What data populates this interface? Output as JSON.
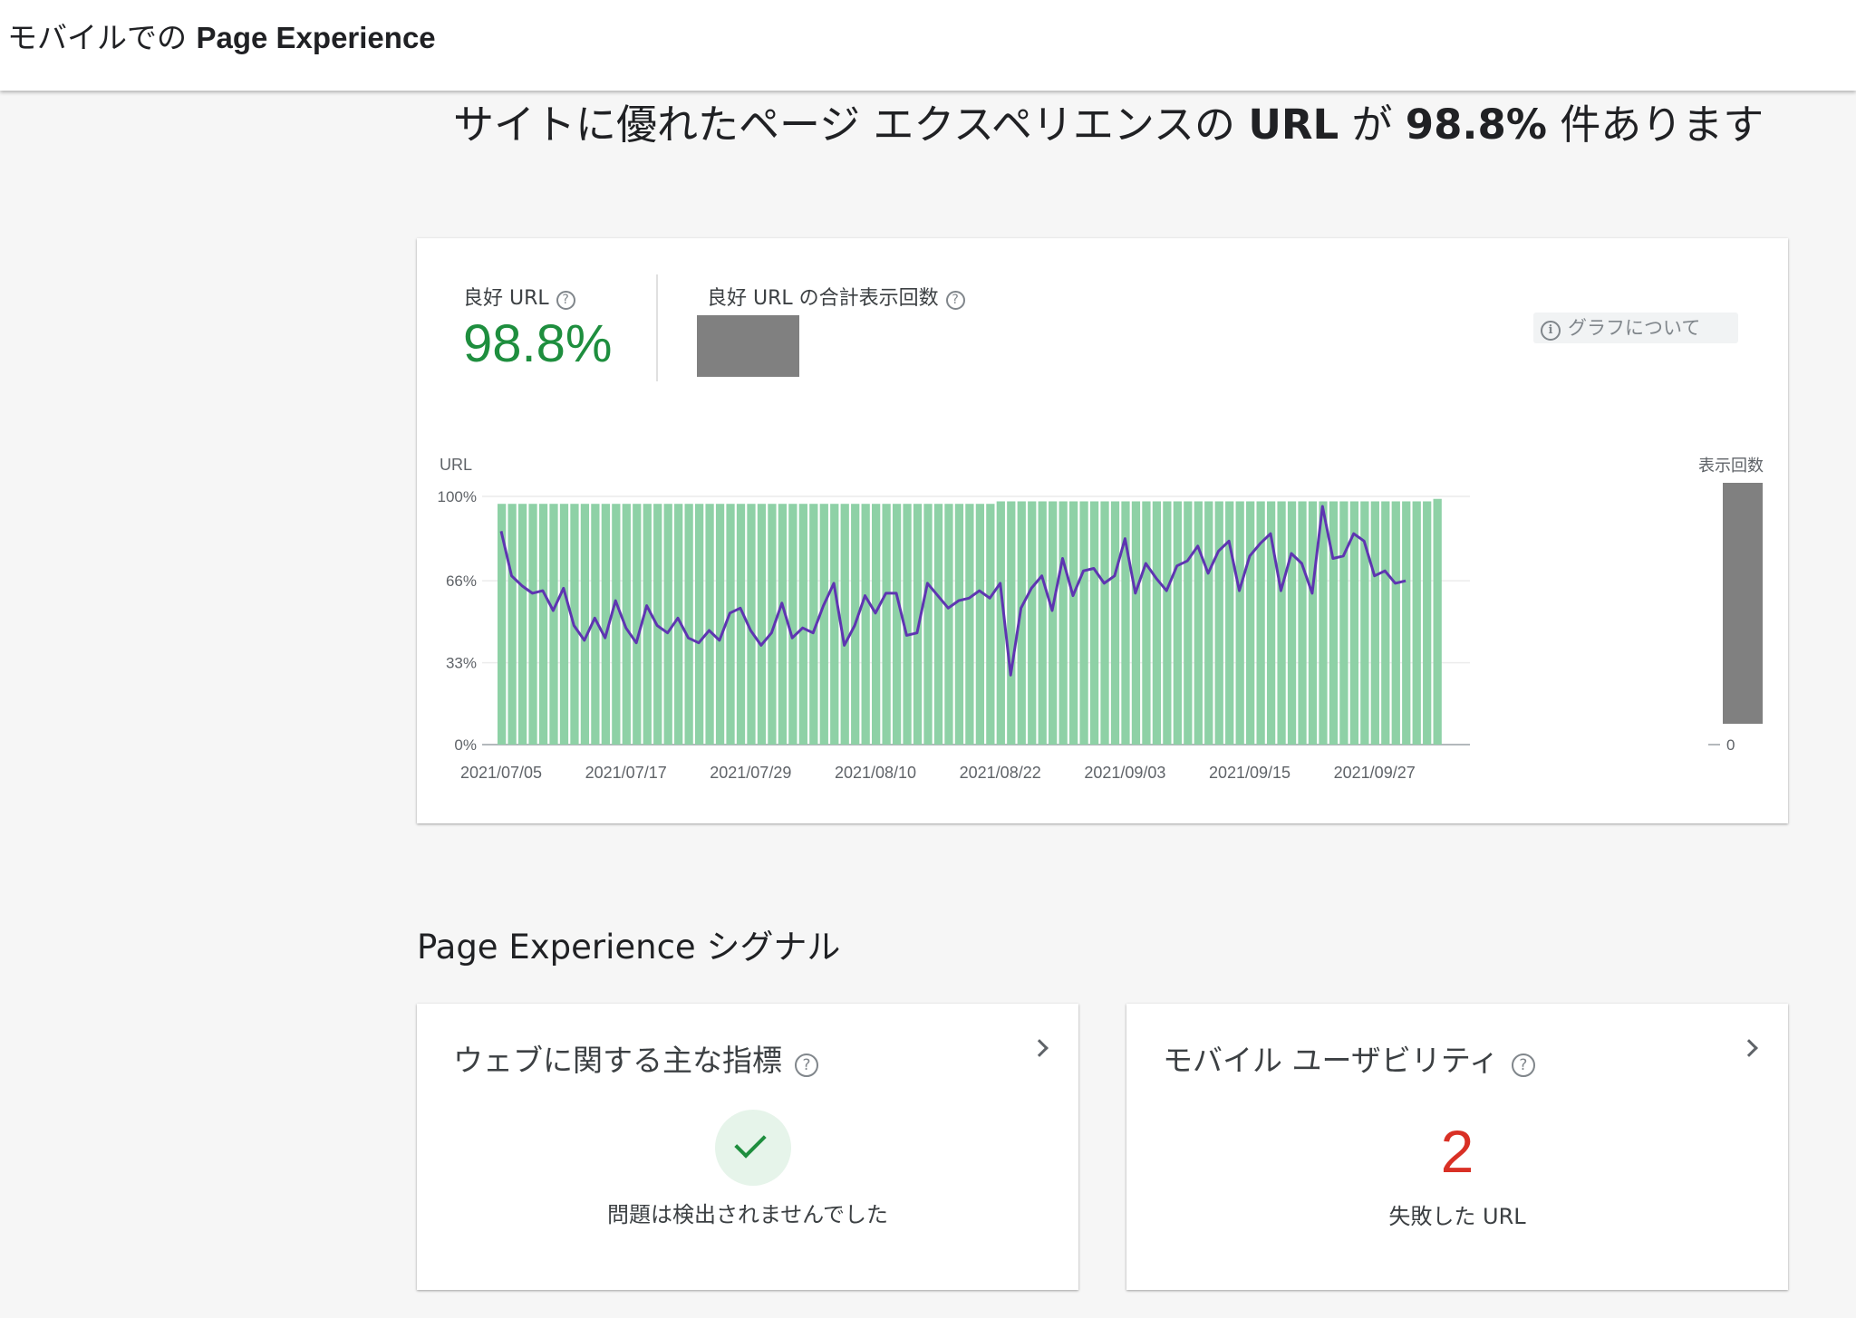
{
  "header": {
    "title_prefix": "モバイルでの ",
    "title_bold": "Page Experience"
  },
  "headline": {
    "prefix": "サイトに優れたページ エクスペリエンスの ",
    "bold1": "URL",
    "middle": " が ",
    "bold2": "98.8%",
    "suffix": " 件あります"
  },
  "summary": {
    "good_url_label": "良好 URL",
    "good_url_value": "98.8%",
    "impressions_label": "良好 URL の合計表示回数",
    "about_graph_label": "グラフについて",
    "help_glyph": "?",
    "info_glyph": "i"
  },
  "chart_data": {
    "type": "bar",
    "y_label_left": "URL",
    "y_label_right": "表示回数",
    "y_ticks_left": [
      "0%",
      "33%",
      "66%",
      "100%"
    ],
    "y_ticks_left_values": [
      0,
      33,
      66,
      100
    ],
    "y_tick_right": "0",
    "x_tick_labels": [
      "2021/07/05",
      "2021/07/17",
      "2021/07/29",
      "2021/08/10",
      "2021/08/22",
      "2021/09/03",
      "2021/09/15",
      "2021/09/27"
    ],
    "ylim": [
      0,
      100
    ],
    "bar_color": "#8ed1a6",
    "line_color": "#5e35b1",
    "first_date": "2021/07/05",
    "bar_values_percent": [
      97,
      97,
      97,
      97,
      97,
      97,
      97,
      97,
      97,
      97,
      97,
      97,
      97,
      97,
      97,
      97,
      97,
      97,
      97,
      97,
      97,
      97,
      97,
      97,
      97,
      97,
      97,
      97,
      97,
      97,
      97,
      97,
      97,
      97,
      97,
      97,
      97,
      97,
      97,
      97,
      97,
      97,
      97,
      97,
      97,
      97,
      97,
      97,
      98,
      98,
      98,
      98,
      98,
      98,
      98,
      98,
      98,
      98,
      98,
      98,
      98,
      98,
      98,
      98,
      98,
      98,
      98,
      98,
      98,
      98,
      98,
      98,
      98,
      98,
      98,
      98,
      98,
      98,
      98,
      98,
      98,
      98,
      98,
      98,
      98,
      98,
      98,
      98,
      98,
      98,
      99
    ],
    "line_points": [
      [
        0,
        0.86
      ],
      [
        1,
        0.68
      ],
      [
        2,
        0.64
      ],
      [
        3,
        0.61
      ],
      [
        4,
        0.62
      ],
      [
        5,
        0.54
      ],
      [
        6,
        0.63
      ],
      [
        7,
        0.48
      ],
      [
        8,
        0.42
      ],
      [
        9,
        0.51
      ],
      [
        10,
        0.43
      ],
      [
        11,
        0.58
      ],
      [
        12,
        0.47
      ],
      [
        13,
        0.41
      ],
      [
        14,
        0.56
      ],
      [
        15,
        0.48
      ],
      [
        16,
        0.45
      ],
      [
        17,
        0.51
      ],
      [
        18,
        0.43
      ],
      [
        19,
        0.41
      ],
      [
        20,
        0.46
      ],
      [
        21,
        0.42
      ],
      [
        22,
        0.53
      ],
      [
        23,
        0.55
      ],
      [
        24,
        0.46
      ],
      [
        25,
        0.4
      ],
      [
        26,
        0.45
      ],
      [
        27,
        0.57
      ],
      [
        28,
        0.43
      ],
      [
        29,
        0.47
      ],
      [
        30,
        0.45
      ],
      [
        31,
        0.56
      ],
      [
        32,
        0.65
      ],
      [
        33,
        0.4
      ],
      [
        34,
        0.48
      ],
      [
        35,
        0.6
      ],
      [
        36,
        0.53
      ],
      [
        37,
        0.61
      ],
      [
        38,
        0.61
      ],
      [
        39,
        0.44
      ],
      [
        40,
        0.45
      ],
      [
        41,
        0.65
      ],
      [
        42,
        0.6
      ],
      [
        43,
        0.55
      ],
      [
        44,
        0.58
      ],
      [
        45,
        0.59
      ],
      [
        46,
        0.62
      ],
      [
        47,
        0.59
      ],
      [
        48,
        0.65
      ],
      [
        49,
        0.28
      ],
      [
        50,
        0.55
      ],
      [
        51,
        0.63
      ],
      [
        52,
        0.68
      ],
      [
        53,
        0.54
      ],
      [
        54,
        0.75
      ],
      [
        55,
        0.6
      ],
      [
        56,
        0.7
      ],
      [
        57,
        0.71
      ],
      [
        58,
        0.65
      ],
      [
        59,
        0.68
      ],
      [
        60,
        0.83
      ],
      [
        61,
        0.61
      ],
      [
        62,
        0.73
      ],
      [
        63,
        0.67
      ],
      [
        64,
        0.62
      ],
      [
        65,
        0.72
      ],
      [
        66,
        0.74
      ],
      [
        67,
        0.8
      ],
      [
        68,
        0.69
      ],
      [
        69,
        0.78
      ],
      [
        70,
        0.82
      ],
      [
        71,
        0.62
      ],
      [
        72,
        0.76
      ],
      [
        73,
        0.81
      ],
      [
        74,
        0.85
      ],
      [
        75,
        0.62
      ],
      [
        76,
        0.77
      ],
      [
        77,
        0.73
      ],
      [
        78,
        0.61
      ],
      [
        79,
        0.96
      ],
      [
        80,
        0.75
      ],
      [
        81,
        0.76
      ],
      [
        82,
        0.85
      ],
      [
        83,
        0.82
      ],
      [
        84,
        0.68
      ],
      [
        85,
        0.7
      ],
      [
        86,
        0.65
      ],
      [
        87,
        0.66
      ]
    ]
  },
  "signals": {
    "section_title": "Page Experience シグナル",
    "cwv": {
      "title": "ウェブに関する主な指標",
      "status": "問題は検出されませんでした"
    },
    "mobile_usability": {
      "title": "モバイル ユーザビリティ",
      "failed_count": "2",
      "failed_label": "失敗した URL"
    }
  }
}
